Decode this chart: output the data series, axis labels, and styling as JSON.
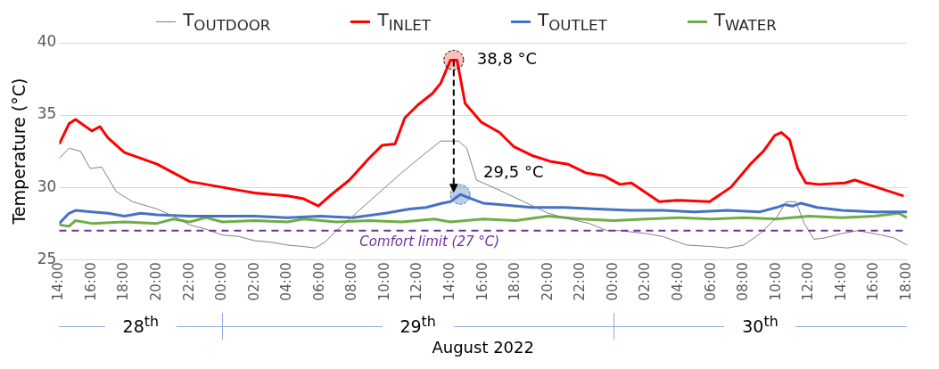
{
  "chart_data": {
    "type": "line",
    "ylabel": "Temperature (°C)",
    "xlabel": "August 2022",
    "legend": "top",
    "grid": "y",
    "marker": "none",
    "line_style": "solid",
    "ylim": [
      25,
      40
    ],
    "yticks": [
      25,
      30,
      35,
      40
    ],
    "xlim": [
      "2022-08-28T14:00",
      "2022-08-30T18:00"
    ],
    "xticks": [
      {
        "value": "2022-08-28T14:00",
        "label": "14:00"
      },
      {
        "value": "2022-08-28T16:00",
        "label": "16:00"
      },
      {
        "value": "2022-08-28T18:00",
        "label": "18:00"
      },
      {
        "value": "2022-08-28T20:00",
        "label": "20:00"
      },
      {
        "value": "2022-08-28T22:00",
        "label": "22:00"
      },
      {
        "value": "2022-08-29T00:00",
        "label": "00:00"
      },
      {
        "value": "2022-08-29T02:00",
        "label": "02:00"
      },
      {
        "value": "2022-08-29T04:00",
        "label": "04:00"
      },
      {
        "value": "2022-08-29T06:00",
        "label": "06:00"
      },
      {
        "value": "2022-08-29T08:00",
        "label": "08:00"
      },
      {
        "value": "2022-08-29T10:00",
        "label": "10:00"
      },
      {
        "value": "2022-08-29T12:00",
        "label": "12:00"
      },
      {
        "value": "2022-08-29T14:00",
        "label": "14:00"
      },
      {
        "value": "2022-08-29T16:00",
        "label": "16:00"
      },
      {
        "value": "2022-08-29T18:00",
        "label": "18:00"
      },
      {
        "value": "2022-08-29T20:00",
        "label": "20:00"
      },
      {
        "value": "2022-08-29T22:00",
        "label": "22:00"
      },
      {
        "value": "2022-08-30T00:00",
        "label": "00:00"
      },
      {
        "value": "2022-08-30T02:00",
        "label": "02:00"
      },
      {
        "value": "2022-08-30T04:00",
        "label": "04:00"
      },
      {
        "value": "2022-08-30T06:00",
        "label": "06:00"
      },
      {
        "value": "2022-08-30T08:00",
        "label": "08:00"
      },
      {
        "value": "2022-08-30T10:00",
        "label": "10:00"
      },
      {
        "value": "2022-08-30T12:00",
        "label": "12:00"
      },
      {
        "value": "2022-08-30T14:00",
        "label": "14:00"
      },
      {
        "value": "2022-08-30T16:00",
        "label": "16:00"
      },
      {
        "value": "2022-08-30T18:00",
        "label": "18:00"
      }
    ],
    "series": [
      {
        "name": "T$_{OUTDOOR}$",
        "color": "#7f7f7f",
        "x": [
          "2022-08-28T14:00",
          "2022-08-28T14:36",
          "2022-08-28T15:18",
          "2022-08-28T15:54",
          "2022-08-28T16:36",
          "2022-08-28T17:30",
          "2022-08-28T18:30",
          "2022-08-28T20:00",
          "2022-08-28T21:00",
          "2022-08-28T22:00",
          "2022-08-28T23:00",
          "2022-08-29T00:00",
          "2022-08-29T01:00",
          "2022-08-29T02:00",
          "2022-08-29T03:00",
          "2022-08-29T04:00",
          "2022-08-29T05:00",
          "2022-08-29T05:42",
          "2022-08-29T06:18",
          "2022-08-29T07:00",
          "2022-08-29T08:00",
          "2022-08-29T09:00",
          "2022-08-29T10:00",
          "2022-08-29T11:00",
          "2022-08-29T12:24",
          "2022-08-29T13:24",
          "2022-08-29T14:30",
          "2022-08-29T15:00",
          "2022-08-29T15:36",
          "2022-08-29T17:00",
          "2022-08-29T18:30",
          "2022-08-29T20:00",
          "2022-08-29T21:18",
          "2022-08-29T22:30",
          "2022-08-29T23:36",
          "2022-08-30T00:24",
          "2022-08-30T02:00",
          "2022-08-30T03:00",
          "2022-08-30T04:30",
          "2022-08-30T06:00",
          "2022-08-30T07:00",
          "2022-08-30T08:00",
          "2022-08-30T09:00",
          "2022-08-30T10:00",
          "2022-08-30T10:36",
          "2022-08-30T11:12",
          "2022-08-30T11:42",
          "2022-08-30T12:18",
          "2022-08-30T13:00",
          "2022-08-30T14:00",
          "2022-08-30T15:00",
          "2022-08-30T16:24",
          "2022-08-30T17:12",
          "2022-08-30T18:00"
        ],
        "values": [
          32.0,
          32.7,
          32.5,
          31.3,
          31.4,
          29.7,
          29.0,
          28.5,
          28.0,
          27.4,
          27.1,
          26.7,
          26.6,
          26.3,
          26.2,
          26.0,
          25.9,
          25.8,
          26.2,
          27.0,
          28.0,
          29.0,
          30.0,
          31.0,
          32.3,
          33.2,
          33.2,
          32.7,
          30.5,
          29.8,
          29.0,
          28.2,
          27.8,
          27.5,
          27.0,
          27.0,
          26.8,
          26.6,
          26.0,
          25.9,
          25.8,
          26.0,
          26.8,
          27.9,
          29.0,
          29.0,
          27.5,
          26.4,
          26.5,
          26.8,
          27.0,
          26.7,
          26.5,
          26.0
        ]
      },
      {
        "name": "T$_{INLET}$",
        "color": "#ff0000",
        "x": [
          "2022-08-28T14:00",
          "2022-08-28T14:36",
          "2022-08-28T15:00",
          "2022-08-28T16:00",
          "2022-08-28T16:30",
          "2022-08-28T17:00",
          "2022-08-28T18:00",
          "2022-08-28T19:00",
          "2022-08-28T20:00",
          "2022-08-28T21:00",
          "2022-08-28T22:00",
          "2022-08-28T23:00",
          "2022-08-29T00:00",
          "2022-08-29T01:00",
          "2022-08-29T02:00",
          "2022-08-29T03:00",
          "2022-08-29T04:00",
          "2022-08-29T05:00",
          "2022-08-29T05:54",
          "2022-08-29T06:42",
          "2022-08-29T07:48",
          "2022-08-29T09:00",
          "2022-08-29T09:48",
          "2022-08-29T10:36",
          "2022-08-29T11:12",
          "2022-08-29T12:00",
          "2022-08-29T12:54",
          "2022-08-29T13:24",
          "2022-08-29T14:00",
          "2022-08-29T14:24",
          "2022-08-29T14:54",
          "2022-08-29T15:54",
          "2022-08-29T17:00",
          "2022-08-29T17:54",
          "2022-08-29T19:00",
          "2022-08-29T20:06",
          "2022-08-29T21:12",
          "2022-08-29T22:18",
          "2022-08-29T23:24",
          "2022-08-30T00:24",
          "2022-08-30T01:06",
          "2022-08-30T02:48",
          "2022-08-30T03:54",
          "2022-08-30T05:54",
          "2022-08-30T07:12",
          "2022-08-30T08:24",
          "2022-08-30T09:12",
          "2022-08-30T09:54",
          "2022-08-30T10:18",
          "2022-08-30T10:48",
          "2022-08-30T11:18",
          "2022-08-30T11:48",
          "2022-08-30T12:36",
          "2022-08-30T14:12",
          "2022-08-30T14:48",
          "2022-08-30T16:42",
          "2022-08-30T17:48"
        ],
        "values": [
          33.0,
          34.4,
          34.7,
          33.9,
          34.2,
          33.4,
          32.4,
          32.0,
          31.6,
          31.0,
          30.4,
          30.2,
          30.0,
          29.8,
          29.6,
          29.5,
          29.4,
          29.2,
          28.7,
          29.5,
          30.5,
          32.0,
          32.9,
          33.0,
          34.8,
          35.7,
          36.5,
          37.2,
          38.8,
          38.8,
          35.8,
          34.5,
          33.8,
          32.8,
          32.2,
          31.8,
          31.6,
          31.0,
          30.8,
          30.2,
          30.3,
          29.0,
          29.1,
          29.0,
          30.0,
          31.6,
          32.5,
          33.6,
          33.8,
          33.3,
          31.3,
          30.3,
          30.2,
          30.3,
          30.5,
          29.8,
          29.4
        ]
      },
      {
        "name": "T$_{OUTLET}$",
        "color": "#4472c4",
        "x": [
          "2022-08-28T14:00",
          "2022-08-28T14:36",
          "2022-08-28T15:00",
          "2022-08-28T16:00",
          "2022-08-28T17:00",
          "2022-08-28T18:00",
          "2022-08-28T19:00",
          "2022-08-28T20:00",
          "2022-08-28T22:00",
          "2022-08-29T00:00",
          "2022-08-29T02:00",
          "2022-08-29T04:00",
          "2022-08-29T06:00",
          "2022-08-29T08:00",
          "2022-08-29T10:00",
          "2022-08-29T11:30",
          "2022-08-29T12:30",
          "2022-08-29T13:30",
          "2022-08-29T14:00",
          "2022-08-29T14:36",
          "2022-08-29T15:18",
          "2022-08-29T16:00",
          "2022-08-29T17:00",
          "2022-08-29T19:00",
          "2022-08-29T21:00",
          "2022-08-29T23:00",
          "2022-08-30T01:00",
          "2022-08-30T03:00",
          "2022-08-30T05:00",
          "2022-08-30T07:00",
          "2022-08-30T09:00",
          "2022-08-30T10:00",
          "2022-08-30T10:30",
          "2022-08-30T11:00",
          "2022-08-30T11:30",
          "2022-08-30T12:30",
          "2022-08-30T14:00",
          "2022-08-30T16:00",
          "2022-08-30T18:00"
        ],
        "values": [
          27.5,
          28.2,
          28.4,
          28.3,
          28.2,
          28.0,
          28.2,
          28.1,
          28.0,
          28.0,
          28.0,
          27.9,
          28.0,
          27.9,
          28.2,
          28.5,
          28.6,
          28.9,
          29.0,
          29.5,
          29.2,
          28.9,
          28.8,
          28.6,
          28.6,
          28.5,
          28.4,
          28.4,
          28.3,
          28.4,
          28.3,
          28.6,
          28.8,
          28.7,
          28.9,
          28.6,
          28.4,
          28.3,
          28.3
        ]
      },
      {
        "name": "T$_{WATER}$",
        "color": "#70ad47",
        "x": [
          "2022-08-28T14:00",
          "2022-08-28T14:36",
          "2022-08-28T15:00",
          "2022-08-28T16:00",
          "2022-08-28T18:00",
          "2022-08-28T20:00",
          "2022-08-28T21:00",
          "2022-08-28T22:00",
          "2022-08-28T23:00",
          "2022-08-29T00:00",
          "2022-08-29T02:00",
          "2022-08-29T04:00",
          "2022-08-29T05:00",
          "2022-08-29T07:00",
          "2022-08-29T09:00",
          "2022-08-29T11:00",
          "2022-08-29T13:00",
          "2022-08-29T14:00",
          "2022-08-29T16:00",
          "2022-08-29T18:00",
          "2022-08-29T20:00",
          "2022-08-29T22:00",
          "2022-08-30T00:00",
          "2022-08-30T02:00",
          "2022-08-30T04:00",
          "2022-08-30T06:00",
          "2022-08-30T08:00",
          "2022-08-30T10:00",
          "2022-08-30T12:00",
          "2022-08-30T14:00",
          "2022-08-30T16:00",
          "2022-08-30T17:30",
          "2022-08-30T18:00"
        ],
        "values": [
          27.4,
          27.3,
          27.7,
          27.5,
          27.6,
          27.5,
          27.8,
          27.6,
          27.9,
          27.6,
          27.7,
          27.6,
          27.8,
          27.6,
          27.7,
          27.6,
          27.8,
          27.6,
          27.8,
          27.7,
          28.0,
          27.8,
          27.7,
          27.8,
          27.9,
          27.8,
          27.9,
          27.8,
          28.0,
          27.9,
          28.0,
          28.2,
          27.9
        ]
      }
    ],
    "ref_lines": [
      {
        "axis": "y",
        "value": 27,
        "label": "Comfort limit (27 °C)",
        "color": "#7030a0",
        "line_style": "dashed"
      }
    ],
    "annotations": [
      {
        "text": "38,8 °C",
        "x": "2022-08-29T14:12",
        "y": 38.8
      },
      {
        "text": "29,5 °C",
        "x": "2022-08-29T14:36",
        "y": 29.5
      },
      "28$^{th}$",
      "29$^{th}$",
      "30$^{th}$"
    ]
  }
}
